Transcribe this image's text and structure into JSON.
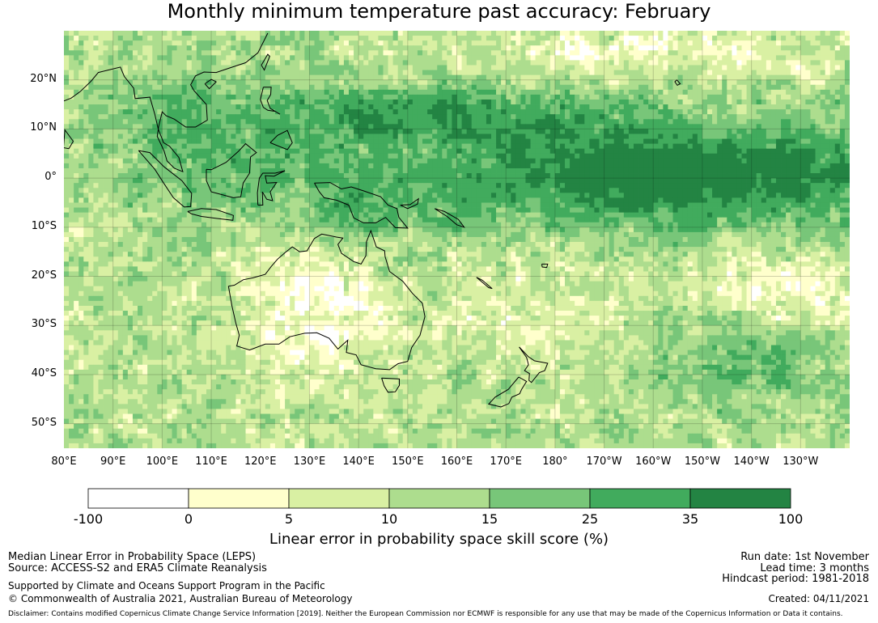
{
  "title": "Monthly minimum temperature past accuracy: February",
  "map": {
    "projection": "Equirectangular",
    "lon_range": [
      80,
      240
    ],
    "lat_range": [
      -55,
      30
    ],
    "lat_ticks": [
      "20°N",
      "10°N",
      "0°",
      "10°S",
      "20°S",
      "30°S",
      "40°S",
      "50°S"
    ],
    "lat_values": [
      20,
      10,
      0,
      -10,
      -20,
      -30,
      -40,
      -50
    ],
    "lon_ticks": [
      "80°E",
      "90°E",
      "100°E",
      "110°E",
      "120°E",
      "130°E",
      "140°E",
      "150°E",
      "160°E",
      "170°E",
      "180°",
      "170°W",
      "160°W",
      "150°W",
      "140°W",
      "130°W"
    ],
    "lon_values": [
      80,
      90,
      100,
      110,
      120,
      130,
      140,
      150,
      160,
      170,
      180,
      190,
      200,
      210,
      220,
      230
    ],
    "features": [
      "Australia",
      "New Zealand",
      "Papua New Guinea",
      "Indonesia",
      "Philippines",
      "Pacific Ocean"
    ]
  },
  "colorbar": {
    "ticks": [
      "-100",
      "0",
      "5",
      "10",
      "15",
      "25",
      "35",
      "100"
    ],
    "colors": [
      "#ffffff",
      "#ffffcc",
      "#d9f0a3",
      "#addd8e",
      "#78c679",
      "#41ab5d",
      "#238443"
    ],
    "label": "Linear error in probability space skill score (%)"
  },
  "info_left": {
    "line1": "Median Linear Error in Probability Space (LEPS)",
    "line2": "Source: ACCESS-S2 and ERA5 Climate Reanalysis",
    "line3": "Supported by Climate and Oceans Support Program in the Pacific",
    "line4": "© Commonwealth of Australia 2021, Australian Bureau of Meteorology"
  },
  "info_right": {
    "run_date": "Run date: 1st November",
    "lead_time": "Lead time: 3 months",
    "hindcast": "Hindcast period: 1981-2018",
    "created": "Created: 04/11/2021"
  },
  "disclaimer": "Disclaimer: Contains modified Copernicus Climate Change Service Information [2019]. Neither the European Commission nor ECMWF is responsible for any use that may be made of the Copernicus Information or Data it contains."
}
